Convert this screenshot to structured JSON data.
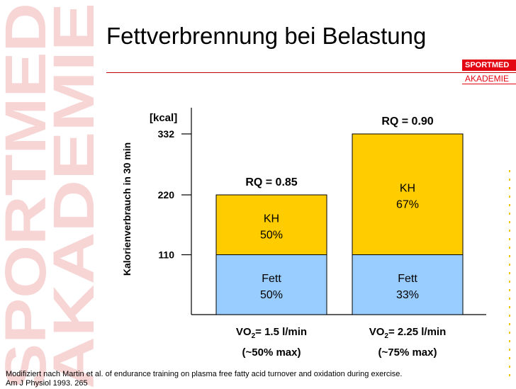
{
  "slide": {
    "title": "Fettverbrennung bei Belastung",
    "watermark_line1": "SPORTMED",
    "watermark_line2": "AKADEMIE",
    "brand_top": "SPORTMED",
    "brand_bottom": "AKADEMIE",
    "footnote_line1": "Modifiziert nach Martin et al. of endurance training on plasma free fatty acid turnover and oxidation during exercise.",
    "footnote_line2": "Am J Physiol 1993. 265"
  },
  "colors": {
    "kh": "#ffcc00",
    "fett": "#99ccff",
    "accent": "#e30613",
    "watermark": "#f7d5d5"
  },
  "chart_data": {
    "type": "bar",
    "stacked": true,
    "ylabel": "Kalorienverbrauch in 30 min",
    "yunit": "[kcal]",
    "yticks": [
      110,
      220,
      332
    ],
    "ylim": [
      0,
      332
    ],
    "grid": false,
    "categories": [
      {
        "line1_prefix": "VO",
        "line1_sub": "2",
        "line1_suffix": "= 1.5 l/min",
        "line2": "(~50% max)",
        "rq": "RQ = 0.85",
        "total": 220
      },
      {
        "line1_prefix": "VO",
        "line1_sub": "2",
        "line1_suffix": "= 2.25 l/min",
        "line2": "(~75% max)",
        "rq": "RQ = 0.90",
        "total": 332
      }
    ],
    "series": [
      {
        "name": "Fett",
        "values": [
          110,
          110
        ],
        "labels": [
          "50%",
          "33%"
        ],
        "color": "#99ccff"
      },
      {
        "name": "KH",
        "values": [
          110,
          222
        ],
        "labels": [
          "50%",
          "67%"
        ],
        "color": "#ffcc00"
      }
    ]
  }
}
